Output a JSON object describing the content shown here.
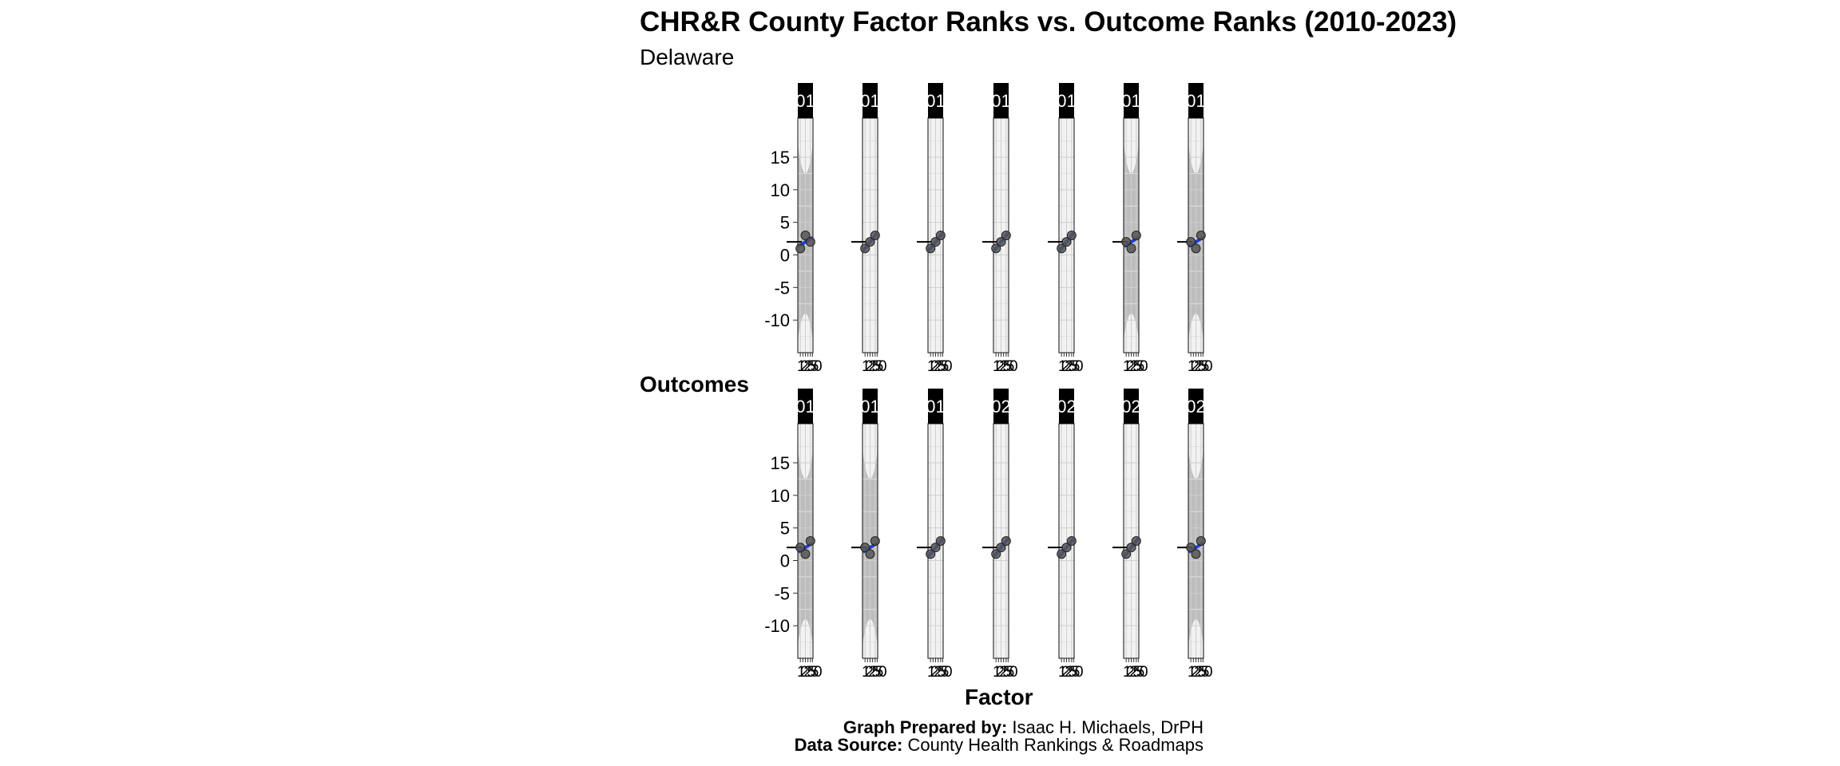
{
  "title": "CHR&R County Factor Ranks vs. Outcome Ranks (2010-2023)",
  "subtitle": "Delaware",
  "caption": {
    "prepared_label": "Graph Prepared by:",
    "prepared_value": " Isaac H. Michaels, DrPH",
    "source_label": "Data Source:",
    "source_value": " County Health Rankings & Roadmaps"
  },
  "chart_data": {
    "type": "scatter",
    "title": "CHR&R County Factor Ranks vs. Outcome Ranks (2010-2023)",
    "subtitle": "Delaware",
    "xlabel": "Factor",
    "ylabel": "Outcomes",
    "ylim": [
      -15,
      21
    ],
    "xlim": [
      0.5,
      3.5
    ],
    "y_ticks": [
      -10,
      -5,
      0,
      5,
      10,
      15
    ],
    "x_tick_labels_row1": [
      "1",
      "2",
      "2",
      "5",
      "5",
      "0"
    ],
    "x_tick_labels_row2": [
      "1",
      "2",
      "2",
      "5",
      "5",
      "0"
    ],
    "strip_labels": [
      "01",
      "01",
      "01",
      "01",
      "01",
      "01",
      "01",
      "01",
      "01",
      "01",
      "02",
      "02",
      "02",
      "02"
    ],
    "grid": true,
    "legend": "none",
    "colors": {
      "points": "#555555",
      "fit_line": "#1f3fd6",
      "strip": "#000000",
      "ci_band": "#bdbdbd",
      "panel": "#f2f2f2"
    },
    "panels": [
      {
        "row": 1,
        "col": 1,
        "x": [
          1,
          2,
          3
        ],
        "y": [
          1,
          3,
          2
        ],
        "shaded": true
      },
      {
        "row": 1,
        "col": 2,
        "x": [
          1,
          2,
          3
        ],
        "y": [
          1,
          2,
          3
        ],
        "shaded": false
      },
      {
        "row": 1,
        "col": 3,
        "x": [
          1,
          2,
          3
        ],
        "y": [
          1,
          2,
          3
        ],
        "shaded": false
      },
      {
        "row": 1,
        "col": 4,
        "x": [
          1,
          2,
          3
        ],
        "y": [
          1,
          2,
          3
        ],
        "shaded": false
      },
      {
        "row": 1,
        "col": 5,
        "x": [
          1,
          2,
          3
        ],
        "y": [
          1,
          2,
          3
        ],
        "shaded": false
      },
      {
        "row": 1,
        "col": 6,
        "x": [
          1,
          2,
          3
        ],
        "y": [
          2,
          1,
          3
        ],
        "shaded": true
      },
      {
        "row": 1,
        "col": 7,
        "x": [
          1,
          2,
          3
        ],
        "y": [
          2,
          1,
          3
        ],
        "shaded": true
      },
      {
        "row": 2,
        "col": 1,
        "x": [
          1,
          2,
          3
        ],
        "y": [
          2,
          1,
          3
        ],
        "shaded": true
      },
      {
        "row": 2,
        "col": 2,
        "x": [
          1,
          2,
          3
        ],
        "y": [
          2,
          1,
          3
        ],
        "shaded": true
      },
      {
        "row": 2,
        "col": 3,
        "x": [
          1,
          2,
          3
        ],
        "y": [
          1,
          2,
          3
        ],
        "shaded": false
      },
      {
        "row": 2,
        "col": 4,
        "x": [
          1,
          2,
          3
        ],
        "y": [
          1,
          2,
          3
        ],
        "shaded": false
      },
      {
        "row": 2,
        "col": 5,
        "x": [
          1,
          2,
          3
        ],
        "y": [
          1,
          2,
          3
        ],
        "shaded": false
      },
      {
        "row": 2,
        "col": 6,
        "x": [
          1,
          2,
          3
        ],
        "y": [
          1,
          2,
          3
        ],
        "shaded": false
      },
      {
        "row": 2,
        "col": 7,
        "x": [
          1,
          2,
          3
        ],
        "y": [
          2,
          1,
          3
        ],
        "shaded": true
      }
    ]
  }
}
